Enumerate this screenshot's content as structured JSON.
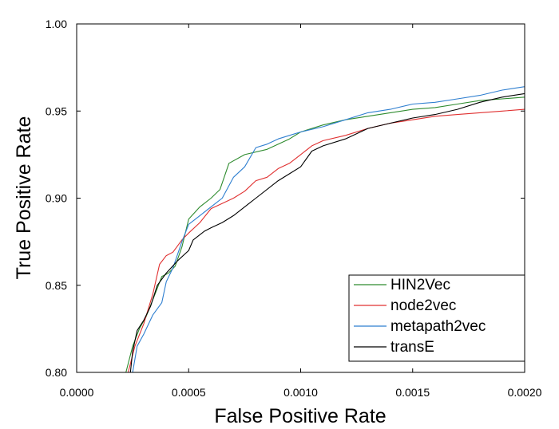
{
  "chart_data": {
    "type": "line",
    "title": "",
    "xlabel": "False Positive Rate",
    "ylabel": "True  Positive Rate",
    "xlim": [
      0,
      0.002
    ],
    "ylim": [
      0.8,
      1.0
    ],
    "x_ticks": [
      0,
      0.0005,
      0.001,
      0.0015,
      0.002
    ],
    "x_tick_labels": [
      "0.0000",
      "0.0005",
      "0.0010",
      "0.0015",
      "0.0020"
    ],
    "y_ticks": [
      0.8,
      0.85,
      0.9,
      0.95,
      1.0
    ],
    "y_tick_labels": [
      "0.80",
      "0.85",
      "0.90",
      "0.95",
      "1.00"
    ],
    "grid": false,
    "legend_position": "bottom-right",
    "series": [
      {
        "name": "HIN2Vec",
        "color": "#2e8b2e",
        "points": [
          [
            0.00022,
            0.8
          ],
          [
            0.00025,
            0.815
          ],
          [
            0.00028,
            0.825
          ],
          [
            0.00031,
            0.832
          ],
          [
            0.00035,
            0.845
          ],
          [
            0.00038,
            0.855
          ],
          [
            0.00041,
            0.857
          ],
          [
            0.00044,
            0.861
          ],
          [
            0.00047,
            0.872
          ],
          [
            0.0005,
            0.888
          ],
          [
            0.00055,
            0.895
          ],
          [
            0.0006,
            0.9
          ],
          [
            0.00064,
            0.905
          ],
          [
            0.00068,
            0.92
          ],
          [
            0.00075,
            0.925
          ],
          [
            0.00085,
            0.928
          ],
          [
            0.00095,
            0.934
          ],
          [
            0.001,
            0.938
          ],
          [
            0.0011,
            0.942
          ],
          [
            0.0012,
            0.945
          ],
          [
            0.0013,
            0.947
          ],
          [
            0.0014,
            0.949
          ],
          [
            0.0015,
            0.951
          ],
          [
            0.0016,
            0.952
          ],
          [
            0.0017,
            0.954
          ],
          [
            0.0018,
            0.956
          ],
          [
            0.0019,
            0.957
          ],
          [
            0.002,
            0.958
          ]
        ]
      },
      {
        "name": "node2vec",
        "color": "#e03030",
        "points": [
          [
            0.00023,
            0.8
          ],
          [
            0.00026,
            0.815
          ],
          [
            0.0003,
            0.828
          ],
          [
            0.00034,
            0.845
          ],
          [
            0.00037,
            0.862
          ],
          [
            0.0004,
            0.867
          ],
          [
            0.00043,
            0.869
          ],
          [
            0.00047,
            0.876
          ],
          [
            0.0005,
            0.88
          ],
          [
            0.00055,
            0.886
          ],
          [
            0.0006,
            0.894
          ],
          [
            0.00065,
            0.897
          ],
          [
            0.0007,
            0.9
          ],
          [
            0.00075,
            0.904
          ],
          [
            0.0008,
            0.91
          ],
          [
            0.00085,
            0.912
          ],
          [
            0.0009,
            0.917
          ],
          [
            0.00095,
            0.92
          ],
          [
            0.001,
            0.925
          ],
          [
            0.00105,
            0.93
          ],
          [
            0.0011,
            0.933
          ],
          [
            0.0012,
            0.936
          ],
          [
            0.0013,
            0.94
          ],
          [
            0.0014,
            0.943
          ],
          [
            0.0015,
            0.945
          ],
          [
            0.0016,
            0.947
          ],
          [
            0.0017,
            0.948
          ],
          [
            0.0018,
            0.949
          ],
          [
            0.0019,
            0.95
          ],
          [
            0.002,
            0.951
          ]
        ]
      },
      {
        "name": "metapath2vec",
        "color": "#2f7fd0",
        "points": [
          [
            0.00025,
            0.8
          ],
          [
            0.00027,
            0.815
          ],
          [
            0.0003,
            0.822
          ],
          [
            0.00034,
            0.833
          ],
          [
            0.00038,
            0.84
          ],
          [
            0.0004,
            0.852
          ],
          [
            0.00043,
            0.86
          ],
          [
            0.00047,
            0.875
          ],
          [
            0.0005,
            0.885
          ],
          [
            0.00055,
            0.89
          ],
          [
            0.0006,
            0.895
          ],
          [
            0.00065,
            0.9
          ],
          [
            0.0007,
            0.912
          ],
          [
            0.00075,
            0.918
          ],
          [
            0.0008,
            0.929
          ],
          [
            0.00085,
            0.931
          ],
          [
            0.0009,
            0.934
          ],
          [
            0.00095,
            0.936
          ],
          [
            0.001,
            0.938
          ],
          [
            0.0011,
            0.941
          ],
          [
            0.0012,
            0.945
          ],
          [
            0.0013,
            0.949
          ],
          [
            0.0014,
            0.951
          ],
          [
            0.0015,
            0.954
          ],
          [
            0.0016,
            0.955
          ],
          [
            0.0017,
            0.957
          ],
          [
            0.0018,
            0.959
          ],
          [
            0.0019,
            0.962
          ],
          [
            0.002,
            0.964
          ]
        ]
      },
      {
        "name": "transE",
        "color": "#000000",
        "points": [
          [
            0.00024,
            0.8
          ],
          [
            0.00025,
            0.812
          ],
          [
            0.00027,
            0.824
          ],
          [
            0.0003,
            0.83
          ],
          [
            0.00033,
            0.838
          ],
          [
            0.00036,
            0.85
          ],
          [
            0.0004,
            0.857
          ],
          [
            0.00045,
            0.864
          ],
          [
            0.0005,
            0.87
          ],
          [
            0.00052,
            0.876
          ],
          [
            0.00057,
            0.881
          ],
          [
            0.0006,
            0.883
          ],
          [
            0.00065,
            0.886
          ],
          [
            0.0007,
            0.89
          ],
          [
            0.00075,
            0.895
          ],
          [
            0.0008,
            0.9
          ],
          [
            0.0009,
            0.91
          ],
          [
            0.00095,
            0.914
          ],
          [
            0.001,
            0.918
          ],
          [
            0.00105,
            0.927
          ],
          [
            0.0011,
            0.93
          ],
          [
            0.0012,
            0.934
          ],
          [
            0.0013,
            0.94
          ],
          [
            0.0014,
            0.943
          ],
          [
            0.0015,
            0.946
          ],
          [
            0.0016,
            0.948
          ],
          [
            0.0017,
            0.951
          ],
          [
            0.0018,
            0.955
          ],
          [
            0.0019,
            0.958
          ],
          [
            0.002,
            0.96
          ]
        ]
      }
    ]
  }
}
